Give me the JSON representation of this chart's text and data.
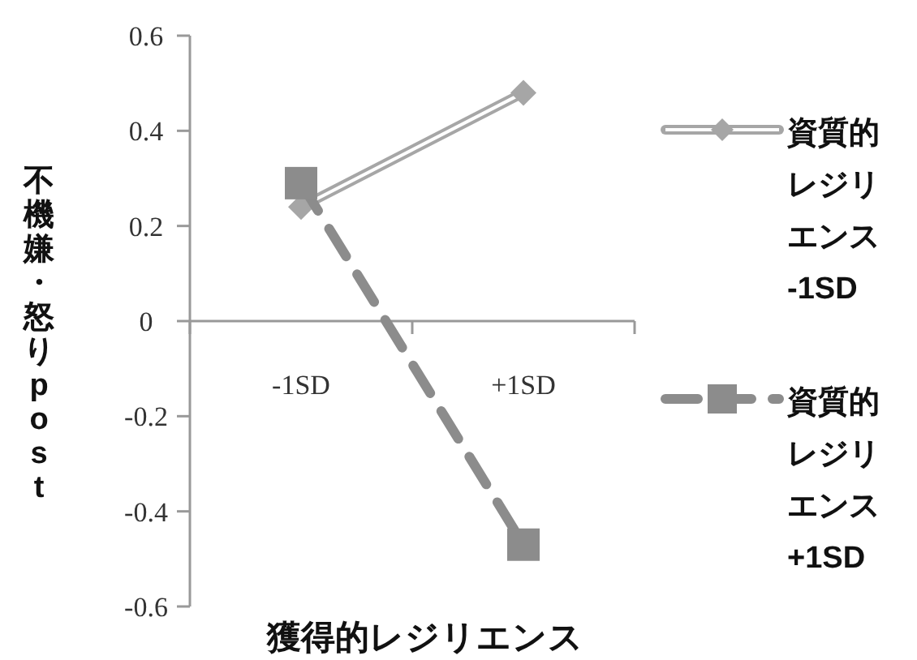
{
  "chart_data": {
    "type": "line",
    "xlabel": "獲得的レジリエンス",
    "ylabel": "不機嫌・怒りpost",
    "categories": [
      "-1SD",
      "+1SD"
    ],
    "series": [
      {
        "name": "資質的レジリエンス-1SD",
        "color": "#a6a6a6",
        "values": [
          0.24,
          0.48
        ],
        "marker": "diamond",
        "line_style": "solid"
      },
      {
        "name": "資質的レジリエンス+1SD",
        "color": "#8c8c8c",
        "values": [
          0.29,
          -0.47
        ],
        "marker": "square",
        "line_style": "dashed"
      }
    ],
    "ylim": [
      -0.6,
      0.6
    ],
    "yticks": [
      -0.6,
      -0.4,
      -0.2,
      0,
      0.2,
      0.4,
      0.6
    ],
    "legend": "right"
  }
}
